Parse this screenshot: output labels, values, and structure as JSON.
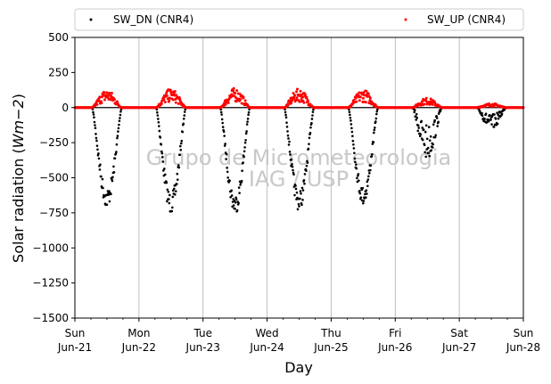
{
  "chart_data": {
    "type": "scatter",
    "title": "",
    "xlabel": "Day",
    "ylabel": "Solar radiation (Wm−2)",
    "ylabel_main": "Solar radiation (",
    "ylabel_unit": "Wm−2",
    "ylabel_close": ")",
    "xlim": [
      "2020-06-21",
      "2020-06-28"
    ],
    "ylim": [
      -1500,
      500
    ],
    "yticks": [
      500,
      250,
      0,
      -250,
      -500,
      -750,
      -1000,
      -1250,
      -1500
    ],
    "ytick_labels": [
      "500",
      "250",
      "0",
      "−250",
      "−500",
      "−750",
      "−1000",
      "−1250",
      "−1500"
    ],
    "xticks": [
      {
        "date": "2020-06-21",
        "day": "Sun",
        "date_label": "Jun-21"
      },
      {
        "date": "2020-06-22",
        "day": "Mon",
        "date_label": "Jun-22"
      },
      {
        "date": "2020-06-23",
        "day": "Tue",
        "date_label": "Jun-23"
      },
      {
        "date": "2020-06-24",
        "day": "Wed",
        "date_label": "Jun-24"
      },
      {
        "date": "2020-06-25",
        "day": "Thu",
        "date_label": "Jun-25"
      },
      {
        "date": "2020-06-26",
        "day": "Fri",
        "date_label": "Jun-26"
      },
      {
        "date": "2020-06-27",
        "day": "Sat",
        "date_label": "Jun-27"
      },
      {
        "date": "2020-06-28",
        "day": "Sun",
        "date_label": "Jun-28"
      }
    ],
    "grid": "vertical",
    "legend_position": "top",
    "series": [
      {
        "name": "SW_DN (CNR4)",
        "color": "#000000",
        "daily_peak": [
          {
            "date": "2020-06-21",
            "peak": -680
          },
          {
            "date": "2020-06-22",
            "peak": -720
          },
          {
            "date": "2020-06-23",
            "peak": -725
          },
          {
            "date": "2020-06-24",
            "peak": -700
          },
          {
            "date": "2020-06-25",
            "peak": -660
          },
          {
            "date": "2020-06-26",
            "peak": -380
          },
          {
            "date": "2020-06-27",
            "peak": -160
          }
        ]
      },
      {
        "name": "SW_UP (CNR4)",
        "color": "#ff0000",
        "daily_peak": [
          {
            "date": "2020-06-21",
            "peak": 130
          },
          {
            "date": "2020-06-22",
            "peak": 135
          },
          {
            "date": "2020-06-23",
            "peak": 140
          },
          {
            "date": "2020-06-24",
            "peak": 135
          },
          {
            "date": "2020-06-25",
            "peak": 130
          },
          {
            "date": "2020-06-26",
            "peak": 70
          },
          {
            "date": "2020-06-27",
            "peak": 30
          }
        ]
      }
    ],
    "watermark": [
      "Grupo de Micrometeorologia",
      "IAG / USP"
    ]
  }
}
